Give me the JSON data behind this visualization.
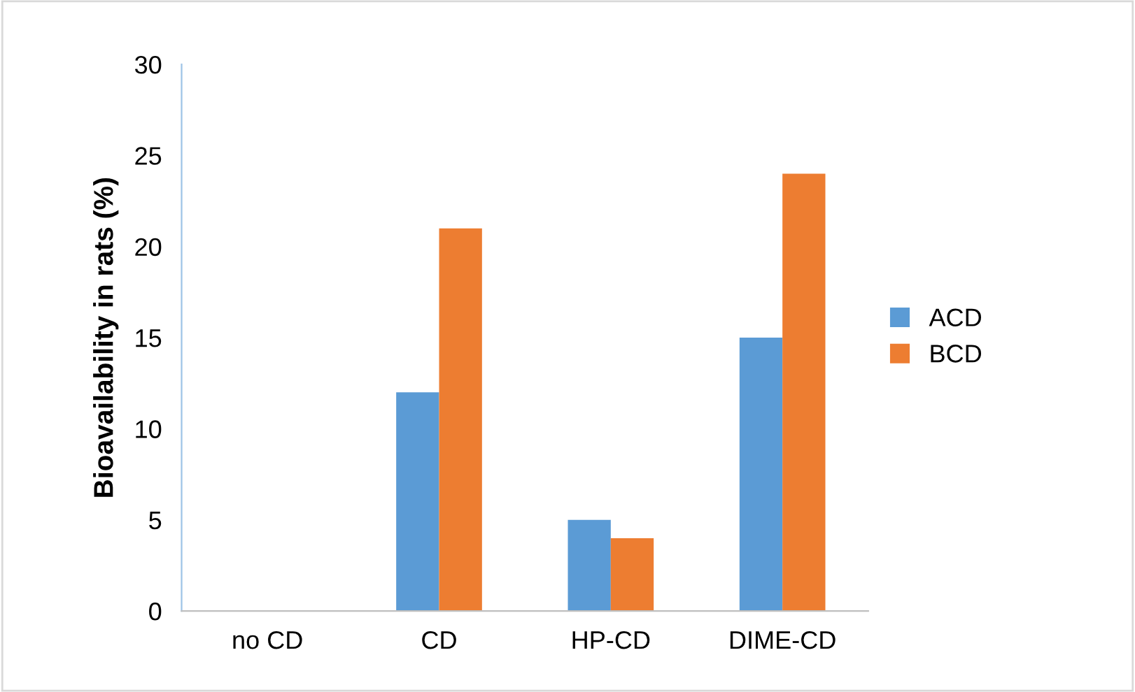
{
  "chart_data": {
    "type": "bar",
    "ylabel": "Bioavailability in rats (%)",
    "categories": [
      "no CD",
      "CD",
      "HP-CD",
      "DIME-CD"
    ],
    "series": [
      {
        "name": "ACD",
        "color": "#5b9bd5",
        "values": [
          0,
          12,
          5,
          15
        ]
      },
      {
        "name": "BCD",
        "color": "#ed7d31",
        "values": [
          0,
          21,
          4,
          24
        ]
      }
    ],
    "ylim": [
      0,
      30
    ],
    "yticks": [
      0,
      5,
      10,
      15,
      20,
      25,
      30
    ],
    "grid": false,
    "legend": "right"
  }
}
